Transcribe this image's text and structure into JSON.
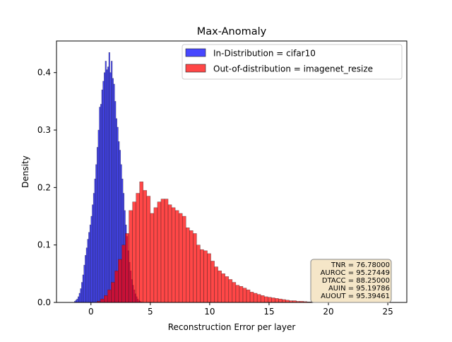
{
  "chart_data": {
    "type": "histogram",
    "title": "Max-Anomaly",
    "xlabel": "Reconstruction Error per layer",
    "ylabel": "Density",
    "xlim": [
      -2.9,
      26.6
    ],
    "ylim": [
      0,
      0.455
    ],
    "xticks": [
      0,
      5,
      10,
      15,
      20,
      25
    ],
    "yticks": [
      0.0,
      0.1,
      0.2,
      0.3,
      0.4
    ],
    "xtick_labels": [
      "0",
      "5",
      "10",
      "15",
      "20",
      "25"
    ],
    "ytick_labels": [
      "0.0",
      "0.1",
      "0.2",
      "0.3",
      "0.4"
    ],
    "legend": {
      "placement": "top-right",
      "entries": [
        "In-Distribution = cifar10",
        "Out-of-distribution = imagenet_resize"
      ]
    },
    "colors": {
      "in_fill": "#0000ff",
      "in_alpha": 0.72,
      "out_fill": "#ff0000",
      "out_alpha": 0.72,
      "edge": "#222222"
    },
    "series": [
      {
        "name": "In-Distribution = cifar10",
        "bin_start": -1.4,
        "bin_width": 0.1,
        "values": [
          0.002,
          0.004,
          0.006,
          0.01,
          0.016,
          0.024,
          0.035,
          0.048,
          0.065,
          0.082,
          0.095,
          0.11,
          0.122,
          0.135,
          0.15,
          0.17,
          0.19,
          0.215,
          0.24,
          0.27,
          0.3,
          0.34,
          0.345,
          0.37,
          0.385,
          0.4,
          0.42,
          0.405,
          0.41,
          0.435,
          0.4,
          0.42,
          0.39,
          0.38,
          0.35,
          0.32,
          0.305,
          0.28,
          0.265,
          0.24,
          0.215,
          0.19,
          0.16,
          0.135,
          0.115,
          0.09,
          0.07,
          0.055,
          0.04,
          0.03,
          0.022,
          0.015,
          0.01,
          0.006,
          0.003,
          0.002,
          0.001,
          0.0
        ]
      },
      {
        "name": "Out-of-distribution = imagenet_resize",
        "bin_start": 0.5,
        "bin_width": 0.3,
        "values": [
          0.002,
          0.006,
          0.012,
          0.022,
          0.035,
          0.055,
          0.075,
          0.1,
          0.12,
          0.16,
          0.175,
          0.19,
          0.21,
          0.195,
          0.185,
          0.155,
          0.165,
          0.175,
          0.18,
          0.18,
          0.17,
          0.165,
          0.16,
          0.155,
          0.15,
          0.13,
          0.125,
          0.12,
          0.1,
          0.092,
          0.09,
          0.085,
          0.072,
          0.062,
          0.055,
          0.05,
          0.045,
          0.04,
          0.035,
          0.03,
          0.028,
          0.025,
          0.022,
          0.018,
          0.016,
          0.014,
          0.012,
          0.01,
          0.009,
          0.008,
          0.007,
          0.006,
          0.005,
          0.004,
          0.003,
          0.003,
          0.002,
          0.002,
          0.0015,
          0.001,
          0.001,
          0.0008,
          0.0005,
          0.0003,
          0.0002,
          0.0002,
          0.0001,
          0.0001,
          0.0001,
          0.0001
        ]
      }
    ],
    "stats_box": {
      "lines": [
        "TNR = 76.78000",
        "AUROC = 95.27449",
        "DTACC = 88.25000",
        "AUIN = 95.19786",
        "AUOUT = 95.39461"
      ],
      "placement": "bottom-right",
      "facecolor": "#f5e6c8",
      "edgecolor": "#888888"
    }
  }
}
